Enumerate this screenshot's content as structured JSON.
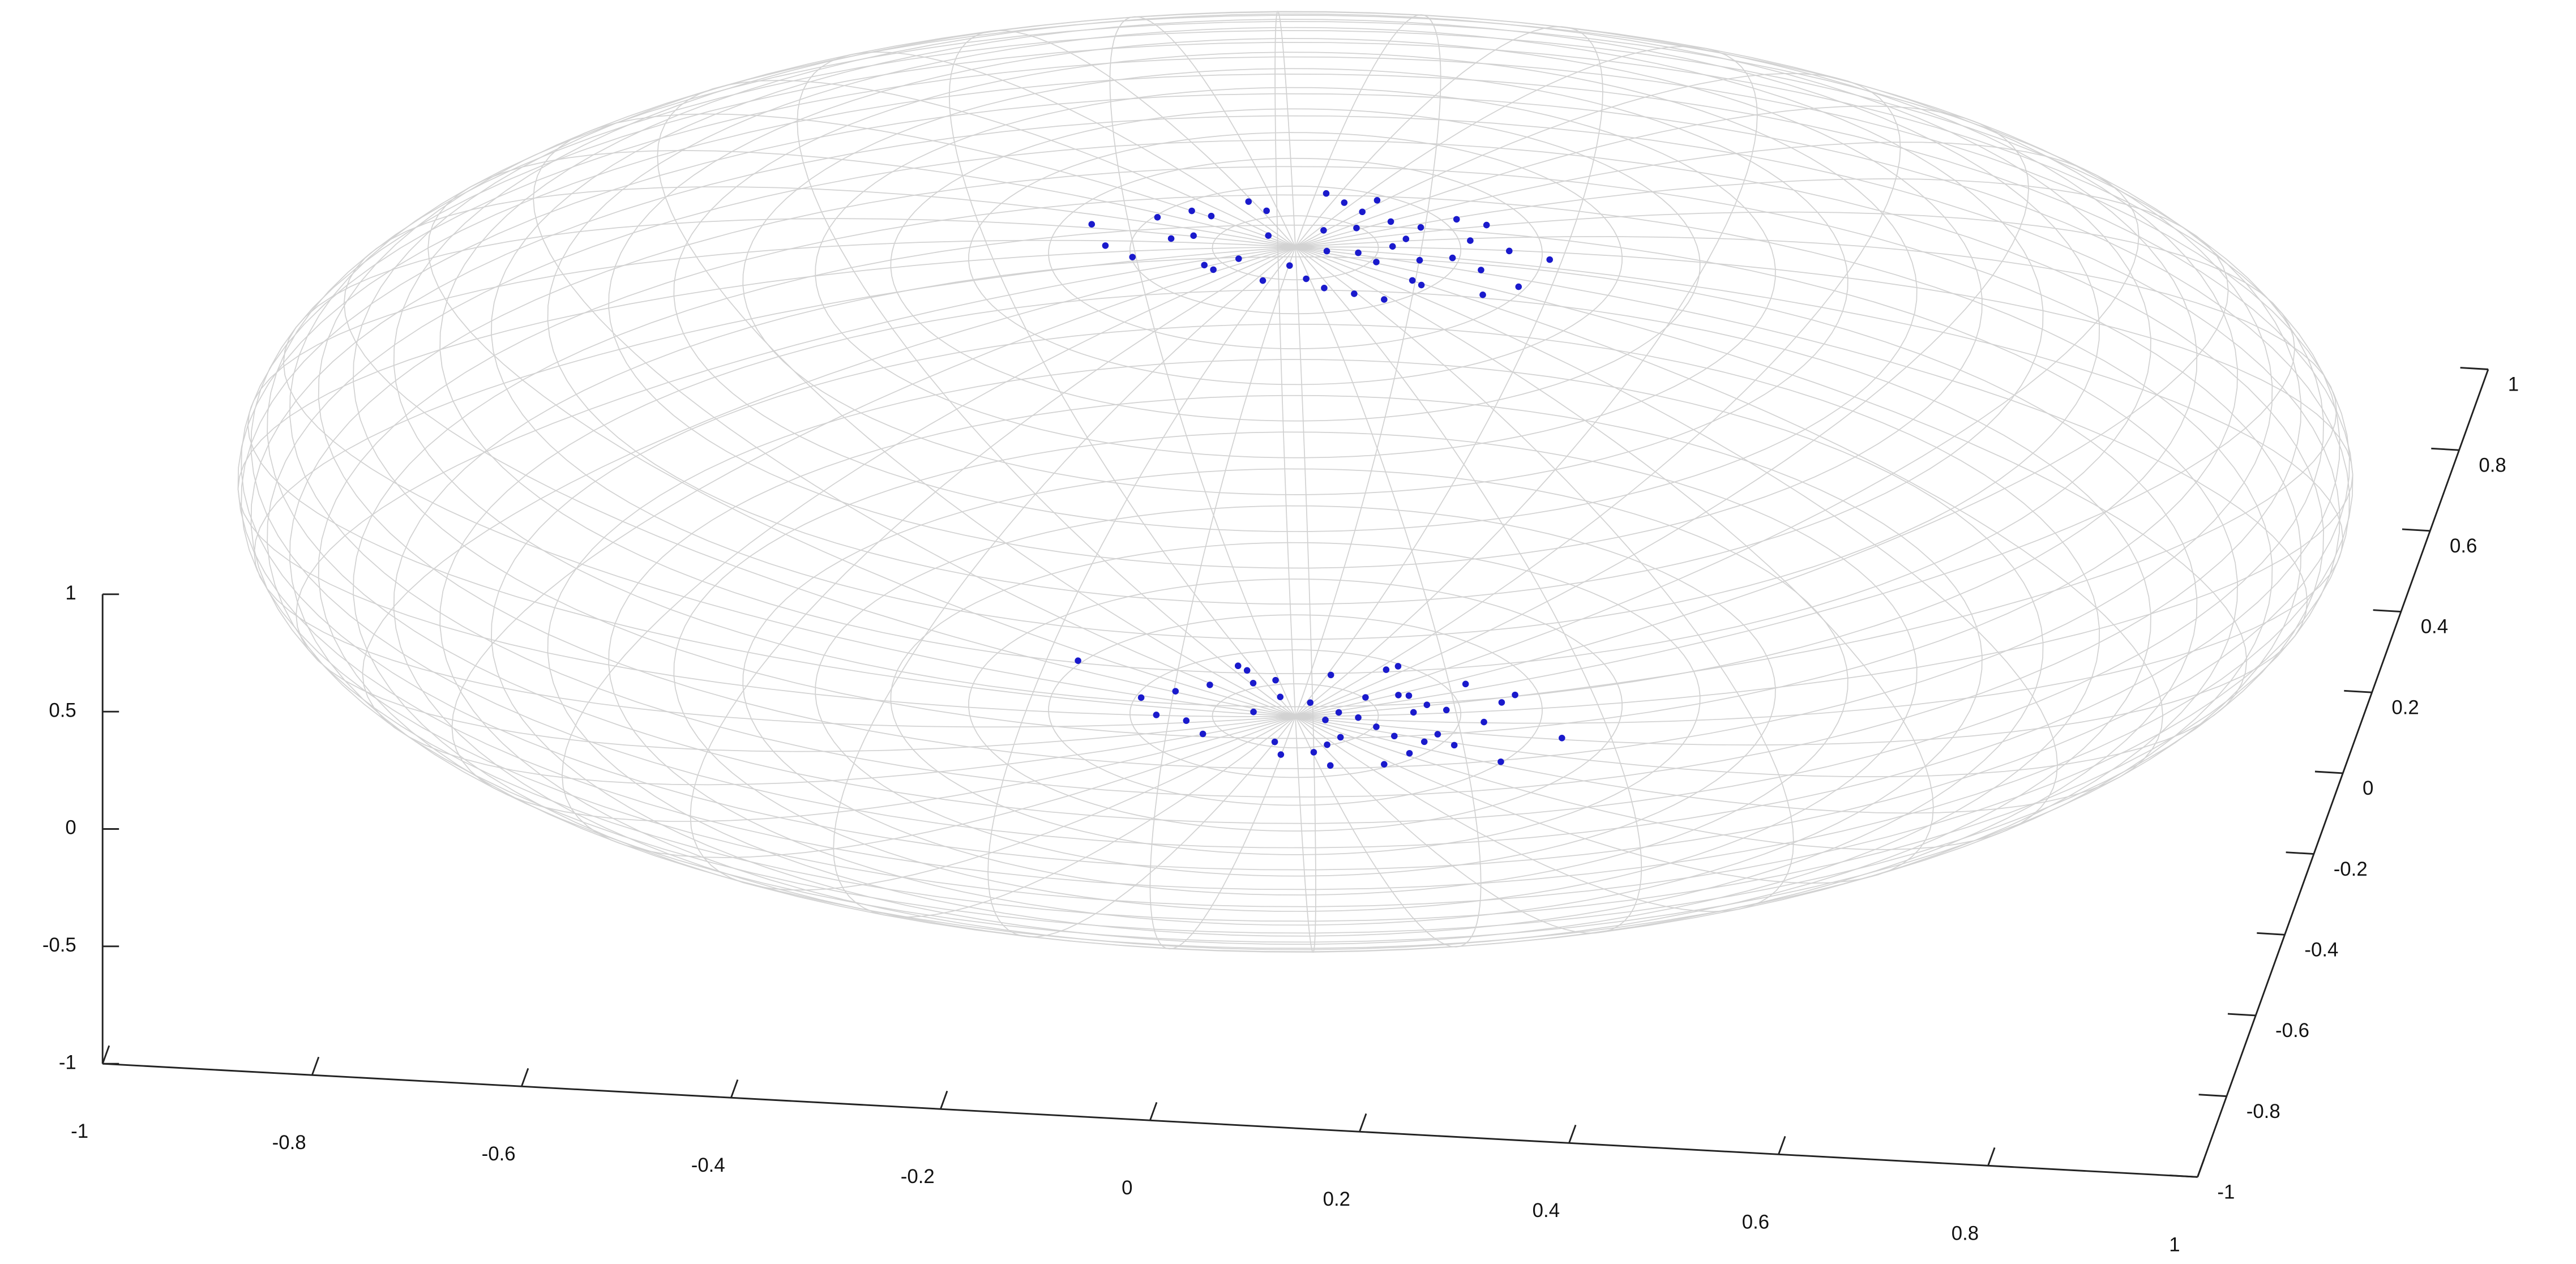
{
  "chart_data": {
    "type": "scatter3d",
    "color": "#1a1acc",
    "xlim": [
      -1,
      1
    ],
    "ylim": [
      -1,
      1
    ],
    "zlim": [
      -1,
      1
    ],
    "xticks": [
      -1,
      -0.8,
      -0.6,
      -0.4,
      -0.2,
      0,
      0.2,
      0.4,
      0.6,
      0.8,
      1
    ],
    "yticks": [
      -1,
      -0.8,
      -0.6,
      -0.4,
      -0.2,
      0,
      0.2,
      0.4,
      0.6,
      0.8,
      1
    ],
    "zticks": [
      -1,
      -0.5,
      0,
      0.5,
      1
    ],
    "x": [
      0.02,
      -0.05,
      0.08,
      0.12,
      -0.1,
      0.15,
      -0.02,
      0.05,
      0.1,
      -0.08,
      0.18,
      -0.14,
      0.03,
      0.07,
      -0.04,
      0.2,
      -0.18,
      0.11,
      0.0,
      0.06,
      -0.06,
      0.13,
      0.09,
      -0.11,
      0.16,
      0.04,
      -0.03,
      0.14,
      -0.07,
      0.01,
      0.22,
      -0.2,
      0.08,
      0.1,
      -0.12,
      0.05,
      0.17,
      -0.09,
      0.02,
      0.12,
      0.24,
      -0.15,
      0.06,
      0.03,
      0.19,
      -0.15,
      0.05,
      0.1,
      -0.03,
      0.08,
      0.14,
      -0.08,
      0.02,
      0.12,
      -0.12,
      0.18,
      0.0,
      0.06,
      -0.05,
      0.1,
      0.04,
      -0.1,
      0.15,
      0.07,
      -0.01,
      0.11,
      0.03,
      -0.07,
      0.13,
      0.09,
      -0.13,
      0.2,
      0.01,
      0.05,
      -0.04,
      0.16,
      0.08,
      -0.22,
      0.26,
      0.12,
      -0.06,
      0.03,
      0.1,
      0.19,
      -0.09,
      0.06,
      0.14,
      -0.02,
      0.04,
      0.21
    ],
    "y": [
      0.05,
      -0.03,
      0.08,
      -0.06,
      0.02,
      0.0,
      -0.08,
      0.1,
      0.04,
      -0.05,
      -0.02,
      0.06,
      0.12,
      -0.1,
      0.09,
      0.03,
      -0.01,
      0.07,
      -0.04,
      0.0,
      0.11,
      -0.07,
      0.02,
      0.08,
      0.05,
      -0.09,
      0.03,
      0.1,
      -0.06,
      0.14,
      -0.05,
      0.04,
      -0.02,
      -0.11,
      0.01,
      0.06,
      0.09,
      0.07,
      -0.07,
      -0.01,
      0.02,
      -0.04,
      0.13,
      0.0,
      -0.08,
      0.02,
      -0.05,
      0.06,
      0.08,
      -0.02,
      0.03,
      -0.06,
      0.1,
      -0.08,
      0.04,
      0.0,
      -0.1,
      0.05,
      0.07,
      -0.04,
      0.01,
      -0.03,
      0.09,
      0.12,
      -0.07,
      0.02,
      -0.01,
      0.11,
      -0.05,
      0.06,
      -0.02,
      0.07,
      0.03,
      -0.12,
      0.0,
      -0.06,
      0.13,
      0.09,
      -0.04,
      0.04,
      0.1,
      -0.09,
      -0.11,
      0.05,
      0.06,
      0.0,
      -0.03,
      0.04,
      -0.07,
      -0.1
    ],
    "z": [
      0.99,
      0.99,
      0.99,
      0.99,
      0.99,
      0.99,
      0.99,
      0.99,
      0.99,
      0.99,
      0.98,
      0.99,
      0.99,
      0.99,
      0.99,
      0.98,
      0.98,
      0.99,
      0.99,
      0.99,
      0.99,
      0.99,
      0.99,
      0.99,
      0.98,
      0.99,
      0.99,
      0.98,
      0.99,
      0.99,
      0.97,
      0.98,
      0.99,
      0.99,
      0.99,
      0.99,
      0.98,
      0.99,
      0.99,
      0.99,
      0.97,
      0.99,
      0.99,
      0.99,
      0.98,
      -0.99,
      -0.99,
      -0.99,
      -0.99,
      -0.99,
      -0.99,
      -0.99,
      -0.99,
      -0.99,
      -0.99,
      -0.98,
      -0.99,
      -0.99,
      -0.99,
      -0.99,
      -0.99,
      -0.99,
      -0.98,
      -0.99,
      -0.99,
      -0.99,
      -0.99,
      -0.99,
      -0.99,
      -0.99,
      -0.99,
      -0.98,
      -0.99,
      -0.99,
      -0.99,
      -0.98,
      -0.99,
      -0.97,
      -0.96,
      -0.99,
      -0.99,
      -0.99,
      -0.99,
      -0.98,
      -0.99,
      -0.99,
      -0.99,
      -0.99,
      -0.99,
      -0.97
    ]
  }
}
